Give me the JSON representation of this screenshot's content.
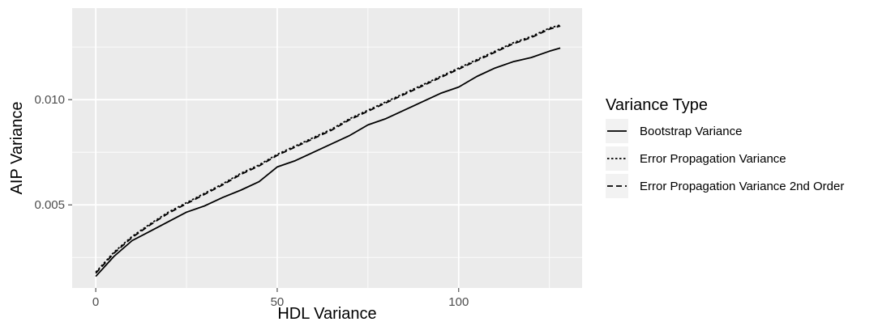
{
  "chart_data": {
    "type": "line",
    "title": "",
    "xlabel": "HDL Variance",
    "ylabel": "AIP Variance",
    "xlim": [
      -6.5,
      134
    ],
    "ylim": [
      0.00105,
      0.01435
    ],
    "x_ticks": [
      0,
      50,
      100
    ],
    "x_tick_labels": [
      "0",
      "50",
      "100"
    ],
    "x_minor_ticks": [
      25,
      75,
      125
    ],
    "y_ticks": [
      0.005,
      0.01
    ],
    "y_tick_labels": [
      "0.005",
      "0.010"
    ],
    "y_minor_ticks": [
      0.0025,
      0.0075,
      0.0125
    ],
    "grid": true,
    "background": "#ebebeb",
    "grid_color": "#ffffff",
    "line_color": "#000000",
    "legend": {
      "title": "Variance Type",
      "position": "right"
    },
    "series": [
      {
        "name": "Bootstrap Variance",
        "linetype": "solid",
        "x": [
          0,
          5,
          10,
          15,
          20,
          25,
          30,
          35,
          40,
          45,
          50,
          55,
          60,
          65,
          70,
          75,
          80,
          85,
          90,
          95,
          100,
          105,
          110,
          115,
          120,
          125,
          128
        ],
        "y": [
          0.0016,
          0.00255,
          0.0033,
          0.00375,
          0.0042,
          0.00465,
          0.00495,
          0.00535,
          0.0057,
          0.0061,
          0.0068,
          0.0071,
          0.0075,
          0.0079,
          0.0083,
          0.0088,
          0.0091,
          0.0095,
          0.0099,
          0.0103,
          0.0106,
          0.0111,
          0.0115,
          0.0118,
          0.012,
          0.0123,
          0.01245
        ]
      },
      {
        "name": "Error Propagation Variance",
        "linetype": "dotted",
        "x": [
          0,
          5,
          10,
          15,
          20,
          25,
          30,
          35,
          40,
          45,
          50,
          55,
          60,
          65,
          70,
          75,
          80,
          85,
          90,
          95,
          100,
          105,
          110,
          115,
          120,
          125,
          128
        ],
        "y": [
          0.0018,
          0.00275,
          0.0035,
          0.0041,
          0.00465,
          0.0051,
          0.00555,
          0.006,
          0.0065,
          0.0069,
          0.0074,
          0.0078,
          0.0082,
          0.0086,
          0.0091,
          0.0095,
          0.0099,
          0.0103,
          0.0107,
          0.0111,
          0.0115,
          0.0119,
          0.0123,
          0.0127,
          0.013,
          0.0134,
          0.01355
        ]
      },
      {
        "name": "Error Propagation Variance 2nd Order",
        "linetype": "dashed",
        "x": [
          0,
          5,
          10,
          15,
          20,
          25,
          30,
          35,
          40,
          45,
          50,
          55,
          60,
          65,
          70,
          75,
          80,
          85,
          90,
          95,
          100,
          105,
          110,
          115,
          120,
          125,
          128
        ],
        "y": [
          0.00175,
          0.0027,
          0.00345,
          0.00405,
          0.0046,
          0.00505,
          0.0055,
          0.00595,
          0.00645,
          0.00685,
          0.00735,
          0.00775,
          0.00815,
          0.00855,
          0.00905,
          0.00945,
          0.00985,
          0.01025,
          0.01065,
          0.01105,
          0.01145,
          0.01185,
          0.01225,
          0.01265,
          0.01295,
          0.01335,
          0.0135
        ]
      }
    ]
  }
}
